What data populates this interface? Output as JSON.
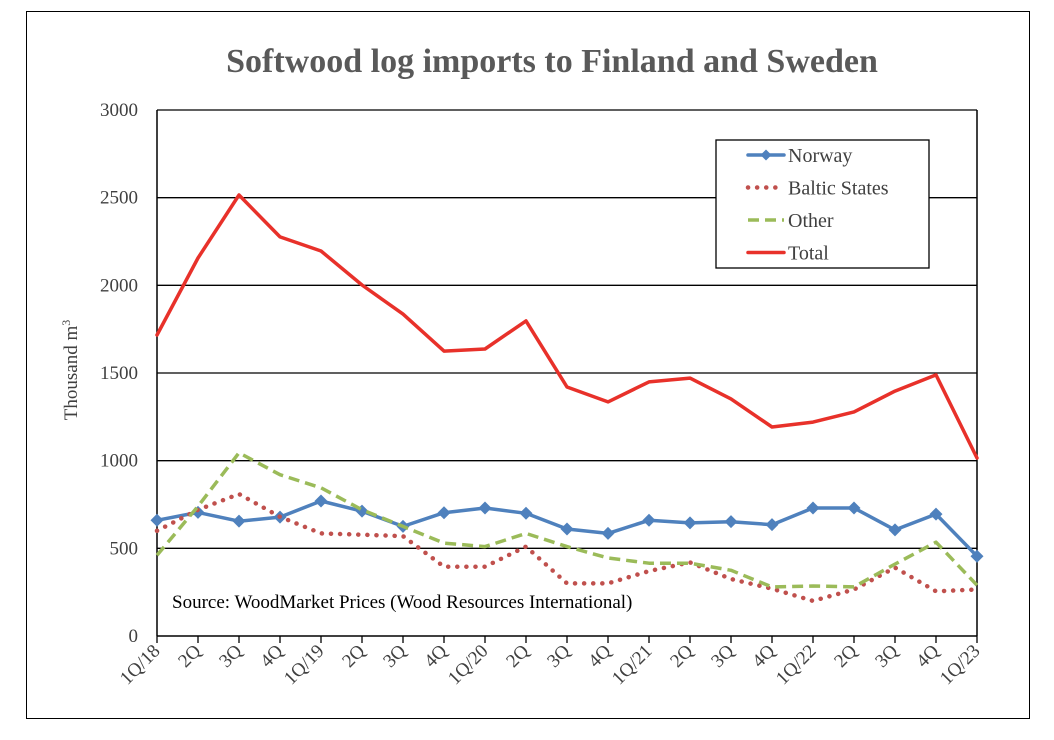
{
  "chart_data": {
    "type": "line",
    "title": "Softwood log imports to Finland and Sweden",
    "ylabel": "Thousand m",
    "ylabel_superscript": "3",
    "xlabel": "",
    "ylim": [
      0,
      3000
    ],
    "yticks": [
      0,
      500,
      1000,
      1500,
      2000,
      2500,
      3000
    ],
    "grid": true,
    "legend_position": "top-right",
    "annotation": "Source: WoodMarket Prices (Wood Resources International)",
    "categories": [
      "1Q/18",
      "2Q",
      "3Q",
      "4Q",
      "1Q/19",
      "2Q",
      "3Q",
      "4Q",
      "1Q/20",
      "2Q",
      "3Q",
      "4Q",
      "1Q/21",
      "2Q",
      "3Q",
      "4Q",
      "1Q/22",
      "2Q",
      "3Q",
      "4Q",
      "1Q/23"
    ],
    "series": [
      {
        "name": "Norway",
        "color": "#4f81bd",
        "style": "solid-diamond",
        "values": [
          660,
          705,
          655,
          678,
          770,
          712,
          625,
          703,
          730,
          700,
          610,
          585,
          660,
          645,
          652,
          635,
          730,
          730,
          605,
          695,
          455
        ]
      },
      {
        "name": "Baltic States",
        "color": "#c0504d",
        "style": "dotted",
        "values": [
          600,
          720,
          810,
          680,
          585,
          578,
          570,
          395,
          395,
          510,
          300,
          300,
          370,
          420,
          325,
          270,
          200,
          265,
          390,
          255,
          265
        ]
      },
      {
        "name": "Other",
        "color": "#9bbb59",
        "style": "dashed",
        "values": [
          460,
          740,
          1045,
          920,
          845,
          720,
          625,
          530,
          510,
          585,
          510,
          445,
          415,
          415,
          375,
          280,
          285,
          280,
          410,
          535,
          290
        ]
      },
      {
        "name": "Total",
        "color": "#e8312a",
        "style": "solid",
        "values": [
          1717,
          2156,
          2515,
          2276,
          2196,
          2002,
          1836,
          1625,
          1637,
          1797,
          1420,
          1335,
          1449,
          1471,
          1352,
          1192,
          1220,
          1278,
          1397,
          1489,
          1015
        ]
      }
    ]
  }
}
